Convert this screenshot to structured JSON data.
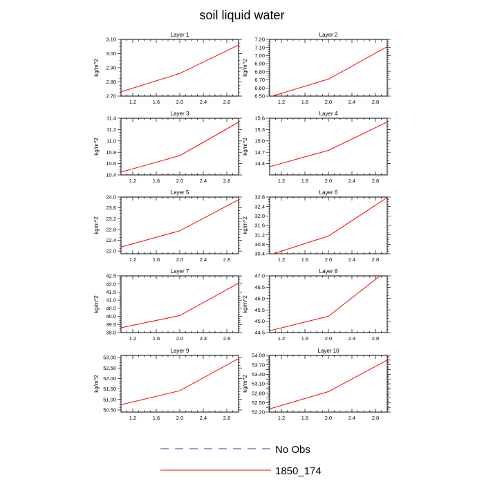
{
  "figure": {
    "title": "soil liquid water",
    "legend": {
      "placement": "bottom-center",
      "entries": [
        {
          "label": "No Obs",
          "color": "#3b3b9a",
          "style": "dashed"
        },
        {
          "label": "1850_174",
          "color": "#ff0000",
          "style": "solid"
        }
      ]
    }
  },
  "chart_data": [
    {
      "type": "line",
      "title": "Layer 1",
      "xlabel": "",
      "ylabel": "kg/m^2",
      "xlim": [
        1,
        3
      ],
      "ylim": [
        2.7,
        3.1
      ],
      "x_ticks": [
        1.2,
        1.6,
        2.0,
        2.4,
        2.8
      ],
      "x_tick_labels": [
        "1.2",
        "1.6",
        "2.0",
        "2.4",
        "2.8"
      ],
      "y_ticks": [
        2.7,
        2.8,
        2.9,
        3.0,
        3.1
      ],
      "y_tick_labels": [
        "2.70",
        "2.80",
        "2.90",
        "3.00",
        "3.10"
      ],
      "grid": false,
      "series": [
        {
          "name": "1850_174",
          "color": "#ff0000",
          "x": [
            1,
            2,
            3
          ],
          "y": [
            2.73,
            2.86,
            3.06
          ]
        }
      ]
    },
    {
      "type": "line",
      "title": "Layer 2",
      "xlabel": "",
      "ylabel": "kg/m^2",
      "xlim": [
        1,
        3
      ],
      "ylim": [
        6.5,
        7.2
      ],
      "x_ticks": [
        1.2,
        1.6,
        2.0,
        2.4,
        2.8
      ],
      "x_tick_labels": [
        "1.2",
        "1.6",
        "2.0",
        "2.4",
        "2.8"
      ],
      "y_ticks": [
        6.5,
        6.6,
        6.7,
        6.8,
        6.9,
        7.0,
        7.1,
        7.2
      ],
      "y_tick_labels": [
        "6.50",
        "6.60",
        "6.70",
        "6.80",
        "6.90",
        "7.00",
        "7.10",
        "7.20"
      ],
      "grid": false,
      "series": [
        {
          "name": "1850_174",
          "color": "#ff0000",
          "x": [
            1,
            2,
            3
          ],
          "y": [
            6.49,
            6.71,
            7.11
          ]
        }
      ]
    },
    {
      "type": "line",
      "title": "Layer 3",
      "xlabel": "",
      "ylabel": "kg/m^2",
      "xlim": [
        1,
        3
      ],
      "ylim": [
        10.4,
        11.4
      ],
      "x_ticks": [
        1.2,
        1.6,
        2.0,
        2.4,
        2.8
      ],
      "x_tick_labels": [
        "1.2",
        "1.6",
        "2.0",
        "2.4",
        "2.8"
      ],
      "y_ticks": [
        10.4,
        10.6,
        10.8,
        11.0,
        11.2,
        11.4
      ],
      "y_tick_labels": [
        "10.4",
        "10.6",
        "10.8",
        "11.0",
        "11.2",
        "11.4"
      ],
      "grid": false,
      "series": [
        {
          "name": "1850_174",
          "color": "#ff0000",
          "x": [
            1,
            2,
            3
          ],
          "y": [
            10.45,
            10.74,
            11.33
          ]
        }
      ]
    },
    {
      "type": "line",
      "title": "Layer 4",
      "xlabel": "",
      "ylabel": "kg/m^2",
      "xlim": [
        1,
        3
      ],
      "ylim": [
        14.1,
        15.6
      ],
      "x_ticks": [
        1.2,
        1.6,
        2.0,
        2.4,
        2.8
      ],
      "x_tick_labels": [
        "1.2",
        "1.6",
        "2.0",
        "2.4",
        "2.8"
      ],
      "y_ticks": [
        14.4,
        14.7,
        15.0,
        15.3,
        15.6
      ],
      "y_tick_labels": [
        "14.4",
        "14.7",
        "15.0",
        "15.3",
        "15.6"
      ],
      "grid": false,
      "series": [
        {
          "name": "1850_174",
          "color": "#ff0000",
          "x": [
            1,
            2,
            3
          ],
          "y": [
            14.32,
            14.75,
            15.5
          ]
        }
      ]
    },
    {
      "type": "line",
      "title": "Layer 5",
      "xlabel": "",
      "ylabel": "kg/m^2",
      "xlim": [
        1,
        3
      ],
      "ylim": [
        21.9,
        24.0
      ],
      "x_ticks": [
        1.2,
        1.6,
        2.0,
        2.4,
        2.8
      ],
      "x_tick_labels": [
        "1.2",
        "1.6",
        "2.0",
        "2.4",
        "2.8"
      ],
      "y_ticks": [
        22.0,
        22.4,
        22.8,
        23.2,
        23.6,
        24.0
      ],
      "y_tick_labels": [
        "22.0",
        "22.4",
        "22.8",
        "23.2",
        "23.6",
        "24.0"
      ],
      "grid": false,
      "series": [
        {
          "name": "1850_174",
          "color": "#ff0000",
          "x": [
            1,
            2,
            3
          ],
          "y": [
            22.15,
            22.75,
            23.9
          ]
        }
      ]
    },
    {
      "type": "line",
      "title": "Layer 6",
      "xlabel": "",
      "ylabel": "kg/m^2",
      "xlim": [
        1,
        3
      ],
      "ylim": [
        30.4,
        32.8
      ],
      "x_ticks": [
        1.2,
        1.6,
        2.0,
        2.4,
        2.8
      ],
      "x_tick_labels": [
        "1.2",
        "1.6",
        "2.0",
        "2.4",
        "2.8"
      ],
      "y_ticks": [
        30.4,
        30.8,
        31.2,
        31.6,
        32.0,
        32.4,
        32.8
      ],
      "y_tick_labels": [
        "30.4",
        "30.8",
        "31.2",
        "31.6",
        "32.0",
        "32.4",
        "32.8"
      ],
      "grid": false,
      "series": [
        {
          "name": "1850_174",
          "color": "#ff0000",
          "x": [
            1,
            2,
            3
          ],
          "y": [
            30.35,
            31.15,
            32.78
          ]
        }
      ]
    },
    {
      "type": "line",
      "title": "Layer 7",
      "xlabel": "",
      "ylabel": "kg/m^2",
      "xlim": [
        1,
        3
      ],
      "ylim": [
        39.0,
        42.5
      ],
      "x_ticks": [
        1.2,
        1.6,
        2.0,
        2.4,
        2.8
      ],
      "x_tick_labels": [
        "1.2",
        "1.6",
        "2.0",
        "2.4",
        "2.8"
      ],
      "y_ticks": [
        39.0,
        39.5,
        40.0,
        40.5,
        41.0,
        41.5,
        42.0,
        42.5
      ],
      "y_tick_labels": [
        "39.0",
        "39.5",
        "40.0",
        "40.5",
        "41.0",
        "41.5",
        "42.0",
        "42.5"
      ],
      "grid": false,
      "series": [
        {
          "name": "1850_174",
          "color": "#ff0000",
          "x": [
            1,
            2,
            3
          ],
          "y": [
            39.3,
            40.05,
            42.05
          ]
        }
      ]
    },
    {
      "type": "line",
      "title": "Layer 8",
      "xlabel": "",
      "ylabel": "kg/m^2",
      "xlim": [
        1,
        3
      ],
      "ylim": [
        44.5,
        47.0
      ],
      "x_ticks": [
        1.2,
        1.6,
        2.0,
        2.4,
        2.8
      ],
      "x_tick_labels": [
        "1.2",
        "1.6",
        "2.0",
        "2.4",
        "2.8"
      ],
      "y_ticks": [
        44.5,
        45.0,
        45.5,
        46.0,
        46.5,
        47.0
      ],
      "y_tick_labels": [
        "44.5",
        "45.0",
        "45.5",
        "46.0",
        "46.5",
        "47.0"
      ],
      "grid": false,
      "series": [
        {
          "name": "1850_174",
          "color": "#ff0000",
          "x": [
            1,
            2,
            3
          ],
          "y": [
            44.58,
            45.22,
            47.25
          ]
        }
      ]
    },
    {
      "type": "line",
      "title": "Layer 9",
      "xlabel": "",
      "ylabel": "kg/m^2",
      "xlim": [
        1,
        3
      ],
      "ylim": [
        50.4,
        53.1
      ],
      "x_ticks": [
        1.2,
        1.6,
        2.0,
        2.4,
        2.8
      ],
      "x_tick_labels": [
        "1.2",
        "1.6",
        "2.0",
        "2.4",
        "2.8"
      ],
      "y_ticks": [
        50.5,
        51.0,
        51.5,
        52.0,
        52.5,
        53.0
      ],
      "y_tick_labels": [
        "50.50",
        "51.00",
        "51.50",
        "52.00",
        "52.50",
        "53.00"
      ],
      "grid": false,
      "series": [
        {
          "name": "1850_174",
          "color": "#ff0000",
          "x": [
            1,
            2,
            3
          ],
          "y": [
            50.75,
            51.42,
            52.95
          ]
        }
      ]
    },
    {
      "type": "line",
      "title": "Layer 10",
      "xlabel": "",
      "ylabel": "kg/m^2",
      "xlim": [
        1,
        3
      ],
      "ylim": [
        52.2,
        54.0
      ],
      "x_ticks": [
        1.2,
        1.6,
        2.0,
        2.4,
        2.8
      ],
      "x_tick_labels": [
        "1.2",
        "1.6",
        "2.0",
        "2.4",
        "2.8"
      ],
      "y_ticks": [
        52.2,
        52.35,
        52.5,
        52.65,
        52.8,
        52.95,
        53.1,
        53.25,
        53.4,
        53.55,
        53.7,
        53.85,
        54.0
      ],
      "y_tick_labels": [
        "52.20",
        "",
        "52.50",
        "",
        "52.80",
        "",
        "53.10",
        "",
        "53.40",
        "",
        "53.70",
        "",
        "54.00"
      ],
      "grid": false,
      "series": [
        {
          "name": "1850_174",
          "color": "#ff0000",
          "x": [
            1,
            2,
            3
          ],
          "y": [
            52.3,
            52.85,
            53.85
          ]
        }
      ]
    }
  ]
}
